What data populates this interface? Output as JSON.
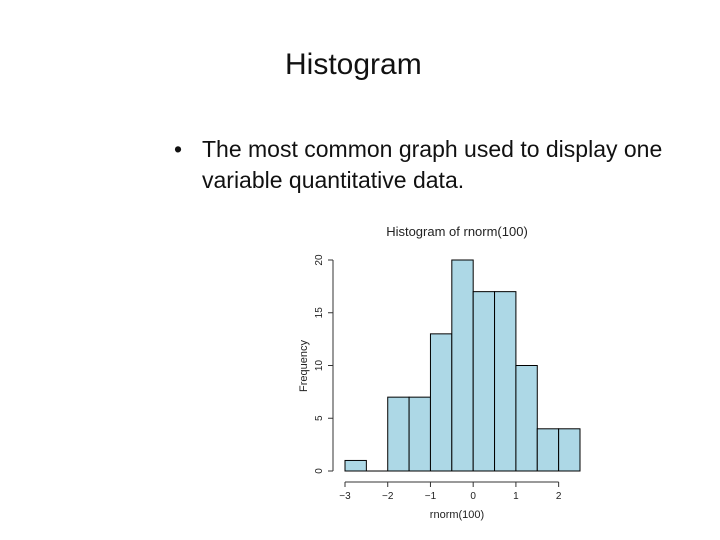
{
  "slide": {
    "title": "Histogram",
    "bullet_symbol": "•",
    "bullet_text": "The most common graph used to display one variable quantitative data."
  },
  "chart_data": {
    "type": "bar",
    "title": "Histogram of rnorm(100)",
    "xlabel": "rnorm(100)",
    "ylabel": "Frequency",
    "bin_edges": [
      -3,
      -2.5,
      -2,
      -1.5,
      -1,
      -0.5,
      0,
      0.5,
      1,
      1.5,
      2,
      2.5
    ],
    "values": [
      1,
      0,
      7,
      7,
      13,
      20,
      17,
      17,
      10,
      4,
      4
    ],
    "xlim": [
      -3,
      2.5
    ],
    "ylim": [
      0,
      20
    ],
    "x_ticks": [
      -3,
      -2,
      -1,
      0,
      1,
      2
    ],
    "x_tick_labels": [
      "−3",
      "−2",
      "−1",
      "0",
      "1",
      "2"
    ],
    "y_ticks": [
      0,
      5,
      10,
      15,
      20
    ],
    "y_tick_labels": [
      "0",
      "5",
      "10",
      "15",
      "20"
    ],
    "bar_color": "#add8e6",
    "edge_color": "#000000",
    "grid": false
  }
}
